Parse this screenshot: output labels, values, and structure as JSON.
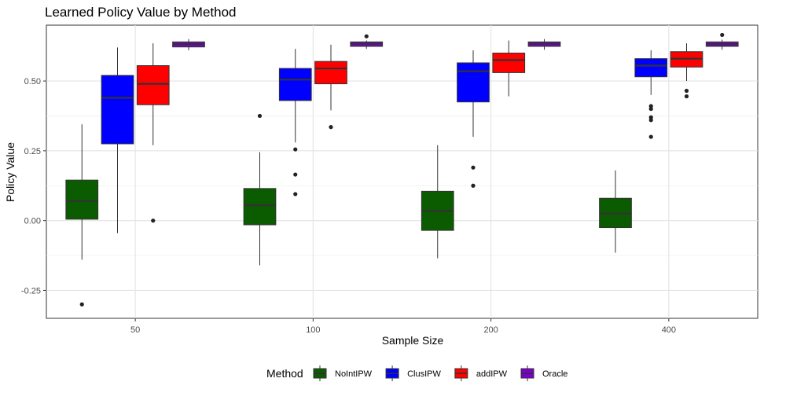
{
  "chart_data": {
    "type": "boxplot",
    "title": "Learned Policy Value by Method",
    "xlabel": "Sample Size",
    "ylabel": "Policy Value",
    "ylim": [
      -0.35,
      0.7
    ],
    "yticks": [
      -0.25,
      0.0,
      0.25,
      0.5
    ],
    "ytick_labels": [
      "-0.25",
      "0.00",
      "0.25",
      "0.50"
    ],
    "categories": [
      "50",
      "100",
      "200",
      "400"
    ],
    "grid": true,
    "legend_position": "bottom",
    "legend_title": "Method",
    "series": [
      {
        "name": "NoIntIPW",
        "color": "#0b5c00",
        "boxes": [
          {
            "q1": 0.005,
            "median": 0.07,
            "q3": 0.145,
            "whisker_low": -0.14,
            "whisker_high": 0.345,
            "outliers": [
              -0.3
            ]
          },
          {
            "q1": -0.015,
            "median": 0.055,
            "q3": 0.115,
            "whisker_low": -0.16,
            "whisker_high": 0.245,
            "outliers": [
              0.375
            ]
          },
          {
            "q1": -0.035,
            "median": 0.035,
            "q3": 0.105,
            "whisker_low": -0.135,
            "whisker_high": 0.27,
            "outliers": []
          },
          {
            "q1": -0.025,
            "median": 0.025,
            "q3": 0.08,
            "whisker_low": -0.115,
            "whisker_high": 0.18,
            "outliers": []
          }
        ]
      },
      {
        "name": "ClusIPW",
        "color": "#0000ff",
        "boxes": [
          {
            "q1": 0.275,
            "median": 0.44,
            "q3": 0.52,
            "whisker_low": -0.045,
            "whisker_high": 0.62,
            "outliers": []
          },
          {
            "q1": 0.43,
            "median": 0.505,
            "q3": 0.545,
            "whisker_low": 0.28,
            "whisker_high": 0.615,
            "outliers": [
              0.255,
              0.165,
              0.095
            ]
          },
          {
            "q1": 0.425,
            "median": 0.535,
            "q3": 0.565,
            "whisker_low": 0.3,
            "whisker_high": 0.61,
            "outliers": [
              0.19,
              0.125
            ]
          },
          {
            "q1": 0.515,
            "median": 0.555,
            "q3": 0.58,
            "whisker_low": 0.45,
            "whisker_high": 0.61,
            "outliers": [
              0.41,
              0.4,
              0.37,
              0.36,
              0.3
            ]
          }
        ]
      },
      {
        "name": "addIPW",
        "color": "#ff0000",
        "boxes": [
          {
            "q1": 0.415,
            "median": 0.49,
            "q3": 0.555,
            "whisker_low": 0.27,
            "whisker_high": 0.635,
            "outliers": [
              0.0
            ]
          },
          {
            "q1": 0.49,
            "median": 0.545,
            "q3": 0.57,
            "whisker_low": 0.395,
            "whisker_high": 0.63,
            "outliers": [
              0.335
            ]
          },
          {
            "q1": 0.53,
            "median": 0.575,
            "q3": 0.6,
            "whisker_low": 0.445,
            "whisker_high": 0.645,
            "outliers": []
          },
          {
            "q1": 0.55,
            "median": 0.58,
            "q3": 0.605,
            "whisker_low": 0.5,
            "whisker_high": 0.635,
            "outliers": [
              0.465,
              0.445
            ]
          }
        ]
      },
      {
        "name": "Oracle",
        "color": "#7a00cc",
        "boxes": [
          {
            "q1": 0.622,
            "median": 0.632,
            "q3": 0.64,
            "whisker_low": 0.61,
            "whisker_high": 0.65,
            "outliers": []
          },
          {
            "q1": 0.624,
            "median": 0.633,
            "q3": 0.64,
            "whisker_low": 0.615,
            "whisker_high": 0.645,
            "outliers": [
              0.66
            ]
          },
          {
            "q1": 0.624,
            "median": 0.633,
            "q3": 0.64,
            "whisker_low": 0.612,
            "whisker_high": 0.65,
            "outliers": []
          },
          {
            "q1": 0.624,
            "median": 0.632,
            "q3": 0.64,
            "whisker_low": 0.612,
            "whisker_high": 0.648,
            "outliers": [
              0.665
            ]
          }
        ]
      }
    ]
  }
}
